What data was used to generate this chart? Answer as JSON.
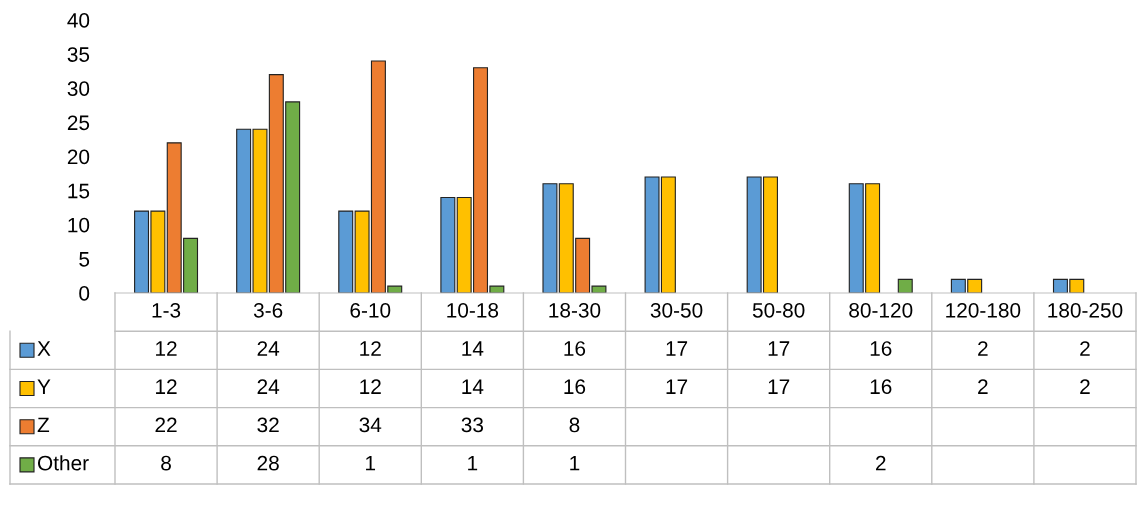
{
  "chart_data": {
    "type": "bar",
    "categories": [
      "1-3",
      "3-6",
      "6-10",
      "10-18",
      "18-30",
      "30-50",
      "50-80",
      "80-120",
      "120-180",
      "180-250"
    ],
    "series": [
      {
        "name": "X",
        "color": "#5b9bd5",
        "values": [
          12,
          24,
          12,
          14,
          16,
          17,
          17,
          16,
          2,
          2
        ]
      },
      {
        "name": "Y",
        "color": "#ffc000",
        "values": [
          12,
          24,
          12,
          14,
          16,
          17,
          17,
          16,
          2,
          2
        ]
      },
      {
        "name": "Z",
        "color": "#ed7d31",
        "values": [
          22,
          32,
          34,
          33,
          8,
          null,
          null,
          null,
          null,
          null
        ]
      },
      {
        "name": "Other",
        "color": "#70ad47",
        "values": [
          8,
          28,
          1,
          1,
          1,
          null,
          null,
          2,
          null,
          null
        ]
      }
    ],
    "ylim": [
      0,
      40
    ],
    "yticks": [
      0,
      5,
      10,
      15,
      20,
      25,
      30,
      35,
      40
    ],
    "grid": false,
    "legend": "bottom",
    "data_labels": true
  }
}
